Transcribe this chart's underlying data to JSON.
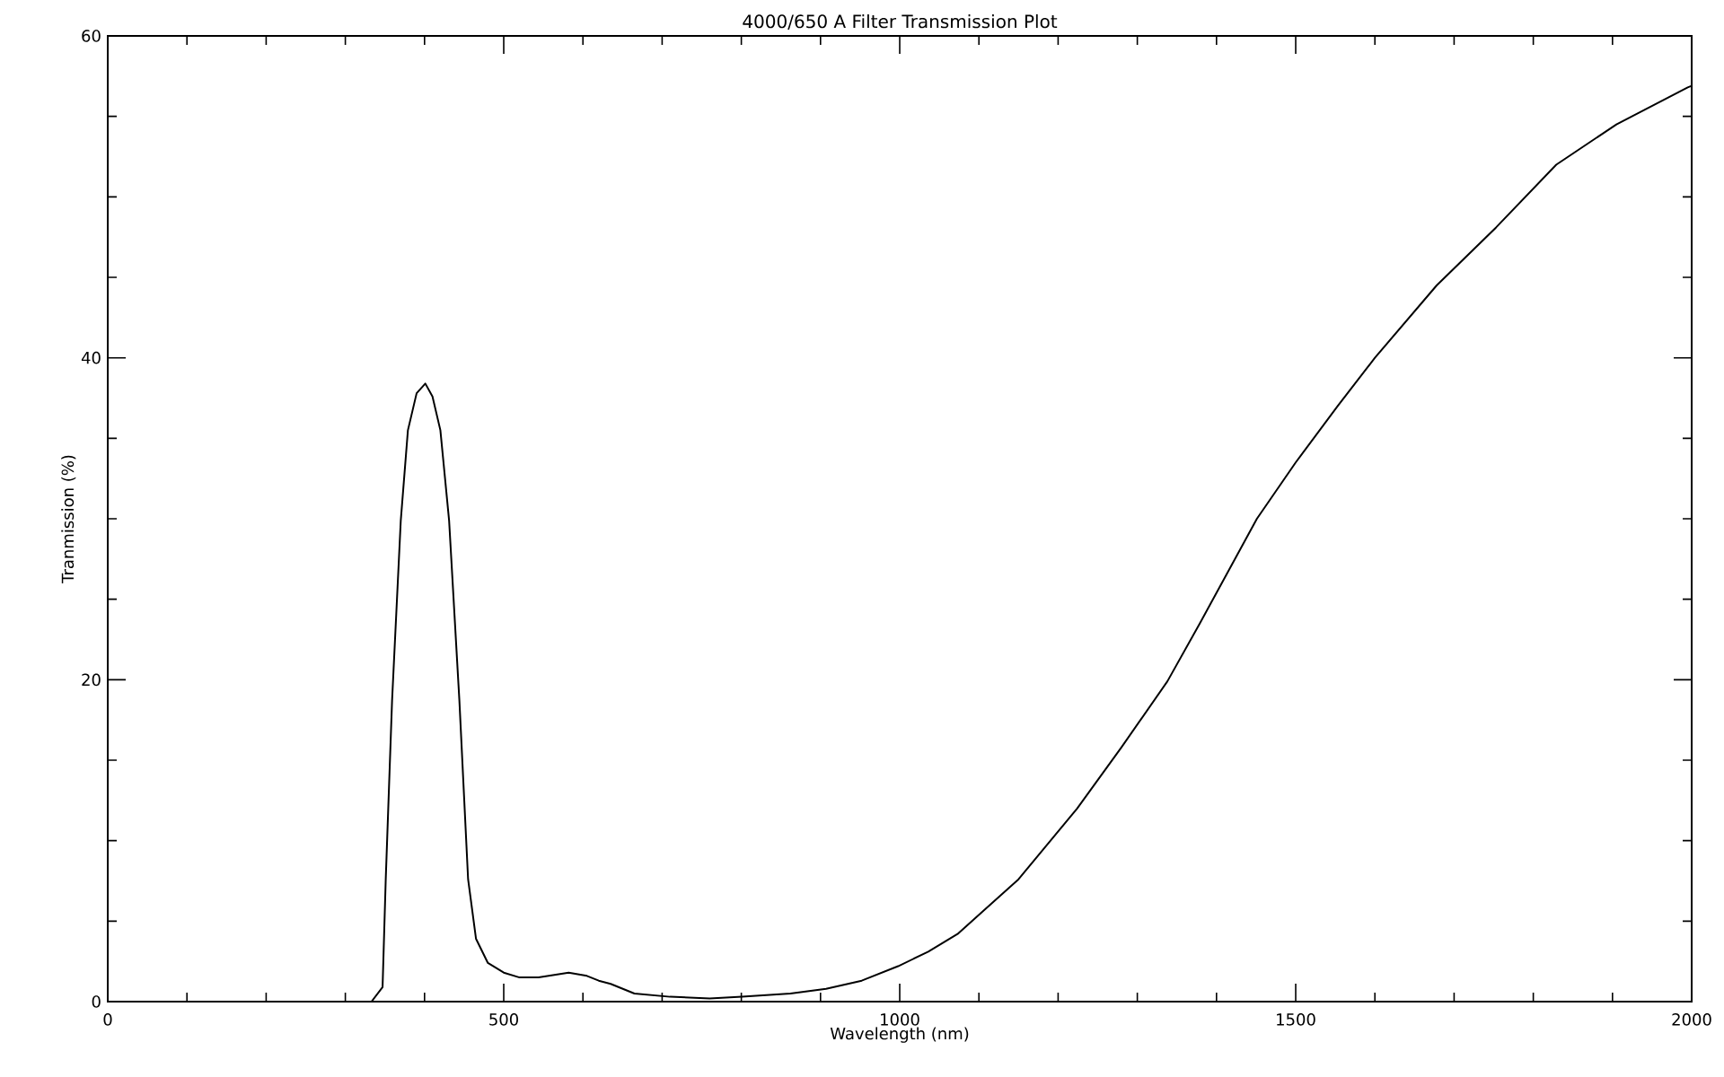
{
  "chart_data": {
    "type": "line",
    "title": "4000/650 A Filter Transmission Plot",
    "xlabel": "Wavelength (nm)",
    "ylabel": "Tranmission (%)",
    "xlim": [
      0,
      2000
    ],
    "ylim": [
      0,
      60
    ],
    "xticks": [
      0,
      {
        "value": 100,
        "label": null
      },
      {
        "value": 200,
        "label": null
      },
      {
        "value": 300,
        "label": null
      },
      {
        "value": 400,
        "label": null
      },
      500,
      {
        "value": 600,
        "label": null
      },
      {
        "value": 700,
        "label": null
      },
      {
        "value": 800,
        "label": null
      },
      {
        "value": 900,
        "label": null
      },
      1000,
      {
        "value": 1100,
        "label": null
      },
      {
        "value": 1200,
        "label": null
      },
      {
        "value": 1300,
        "label": null
      },
      {
        "value": 1400,
        "label": null
      },
      1500,
      {
        "value": 1600,
        "label": null
      },
      {
        "value": 1700,
        "label": null
      },
      {
        "value": 1800,
        "label": null
      },
      {
        "value": 1900,
        "label": null
      },
      2000
    ],
    "yticks": [
      0,
      {
        "value": 5,
        "label": null
      },
      {
        "value": 10,
        "label": null
      },
      {
        "value": 15,
        "label": null
      },
      20,
      {
        "value": 25,
        "label": null
      },
      {
        "value": 30,
        "label": null
      },
      {
        "value": 35,
        "label": null
      },
      40,
      {
        "value": 45,
        "label": null
      },
      {
        "value": 50,
        "label": null
      },
      {
        "value": 55,
        "label": null
      },
      60
    ],
    "grid": false,
    "marker": "none",
    "line_style": "solid",
    "series": [
      {
        "color": "#000000",
        "x": [
          300,
          333,
          347,
          351,
          359,
          370,
          379,
          390,
          401,
          410,
          420,
          431,
          444,
          455,
          465,
          480,
          500,
          520,
          544,
          582,
          605,
          620,
          635,
          665,
          710,
          760,
          801,
          862,
          907,
          952,
          998,
          1036,
          1073,
          1150,
          1224,
          1280,
          1338,
          1379,
          1451,
          1500,
          1553,
          1600,
          1678,
          1753,
          1829,
          1905,
          1995,
          2000
        ],
        "values": [
          0,
          0,
          0.9,
          7.6,
          18.7,
          29.9,
          35.5,
          37.8,
          38.4,
          37.6,
          35.5,
          29.9,
          18.7,
          7.6,
          3.9,
          2.4,
          1.8,
          1.5,
          1.5,
          1.8,
          1.6,
          1.3,
          1.1,
          0.5,
          0.3,
          0.2,
          0.3,
          0.5,
          0.8,
          1.3,
          2.2,
          3.1,
          4.2,
          7.6,
          12.0,
          15.8,
          19.9,
          23.5,
          30,
          33.5,
          37,
          40,
          44.5,
          48.1,
          52.0,
          54.5,
          56.8,
          56.9
        ]
      }
    ]
  }
}
